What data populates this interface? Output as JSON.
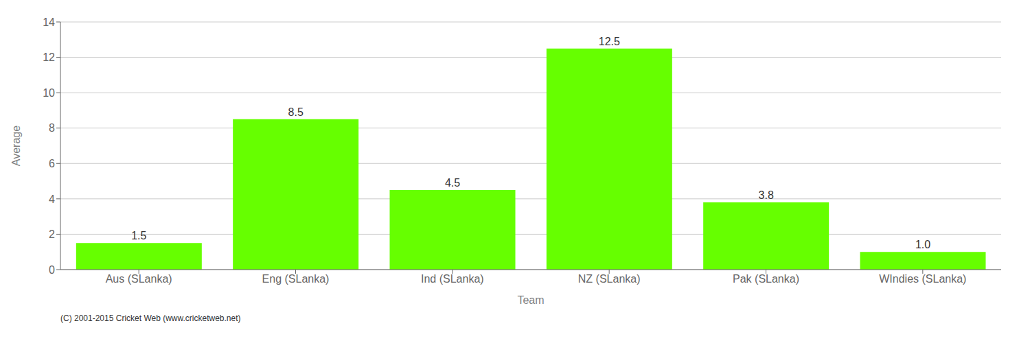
{
  "chart_data": {
    "type": "bar",
    "categories": [
      "Aus (SLanka)",
      "Eng (SLanka)",
      "Ind (SLanka)",
      "NZ (SLanka)",
      "Pak (SLanka)",
      "WIndies (SLanka)"
    ],
    "values": [
      1.5,
      8.5,
      4.5,
      12.5,
      3.8,
      1.0
    ],
    "value_labels": [
      "1.5",
      "8.5",
      "4.5",
      "12.5",
      "3.8",
      "1.0"
    ],
    "data_labels": true,
    "color": "#66FF00",
    "xlabel": "Team",
    "ylabel": "Average",
    "ylim": [
      0,
      14
    ],
    "yticks": [
      0,
      2,
      4,
      6,
      8,
      10,
      12,
      14
    ],
    "grid": true,
    "annotations": [
      "(C) 2001-2015 Cricket Web (www.cricketweb.net)"
    ]
  }
}
